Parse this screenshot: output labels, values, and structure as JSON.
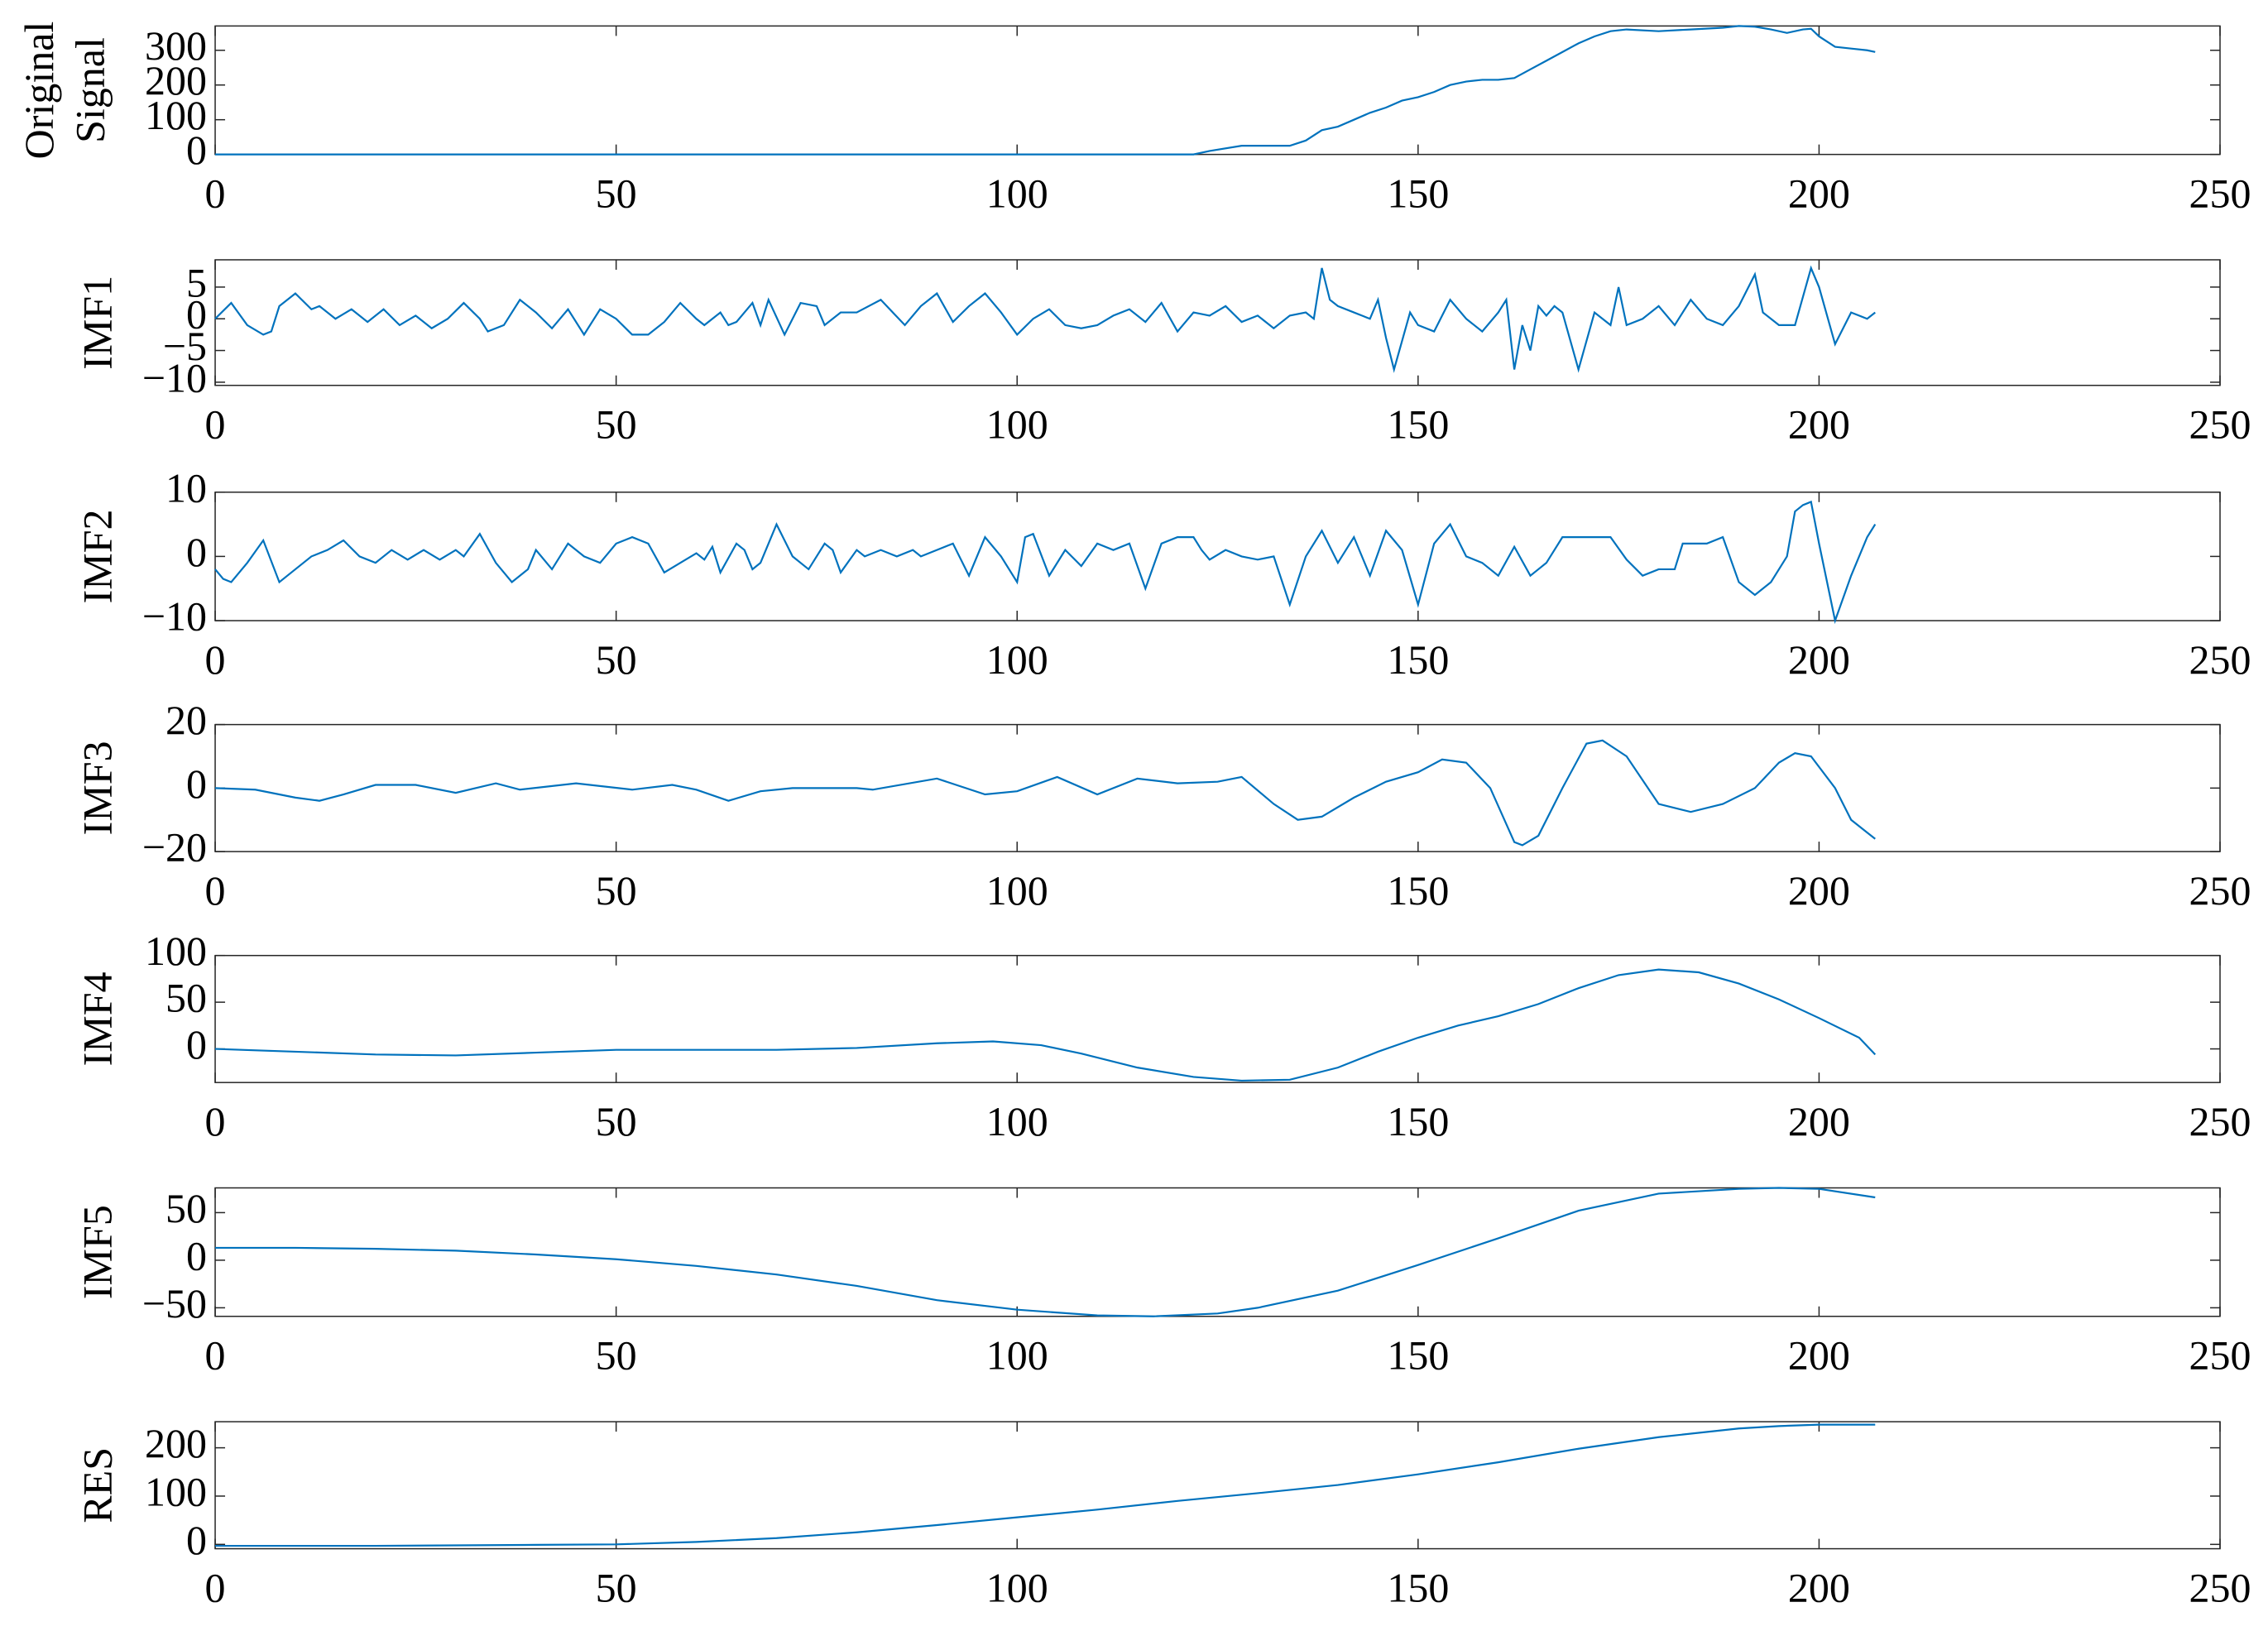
{
  "chart_data": [
    {
      "type": "line",
      "ylabel": [
        "Original",
        "Signal"
      ],
      "color": "#0072bd",
      "x": [
        0,
        20,
        40,
        60,
        80,
        100,
        122,
        124,
        128,
        132,
        134,
        136,
        138,
        140,
        142,
        144,
        146,
        148,
        150,
        152,
        154,
        156,
        158,
        160,
        162,
        164,
        166,
        168,
        170,
        172,
        174,
        176,
        180,
        184,
        188,
        190,
        192,
        194,
        196,
        198,
        199,
        200,
        202,
        204,
        206,
        207
      ],
      "values": [
        0,
        0,
        0,
        0,
        0,
        0,
        0,
        10,
        25,
        25,
        25,
        40,
        70,
        80,
        100,
        120,
        135,
        155,
        165,
        180,
        200,
        210,
        215,
        215,
        220,
        245,
        270,
        295,
        320,
        340,
        355,
        360,
        355,
        360,
        365,
        370,
        368,
        360,
        350,
        360,
        362,
        340,
        310,
        305,
        300,
        295
      ],
      "xlim": [
        0,
        250
      ],
      "xticks": [
        0,
        50,
        100,
        150,
        200,
        250
      ],
      "ylim": [
        0,
        370
      ],
      "yticks": [
        0,
        100,
        200,
        300
      ]
    },
    {
      "type": "line",
      "ylabel": "IMF1",
      "color": "#0072bd",
      "x": [
        0,
        2,
        4,
        6,
        7,
        8,
        10,
        12,
        13,
        15,
        17,
        19,
        21,
        23,
        25,
        27,
        29,
        31,
        33,
        34,
        36,
        38,
        40,
        42,
        44,
        46,
        48,
        50,
        52,
        54,
        56,
        58,
        60,
        61,
        63,
        64,
        65,
        67,
        68,
        69,
        71,
        73,
        75,
        76,
        78,
        80,
        83,
        86,
        88,
        90,
        92,
        94,
        96,
        98,
        100,
        102,
        104,
        106,
        108,
        110,
        112,
        114,
        116,
        118,
        120,
        122,
        124,
        126,
        128,
        130,
        132,
        134,
        136,
        137,
        138,
        139,
        140,
        142,
        143,
        144,
        145,
        146,
        147,
        149,
        150,
        152,
        154,
        156,
        158,
        160,
        161,
        162,
        163,
        164,
        165,
        166,
        167,
        168,
        170,
        172,
        174,
        175,
        176,
        178,
        180,
        182,
        184,
        186,
        188,
        190,
        192,
        193,
        195,
        197,
        199,
        200,
        202,
        204,
        206,
        207
      ],
      "values": [
        0,
        2.5,
        -1,
        -2.5,
        -2,
        2,
        4,
        1.5,
        2,
        0,
        1.5,
        -0.5,
        1.5,
        -1,
        0.5,
        -1.5,
        0,
        2.5,
        0,
        -2,
        -1,
        3,
        1,
        -1.5,
        1.5,
        -2.5,
        1.5,
        0,
        -2.5,
        -2.5,
        -0.5,
        2.5,
        0,
        -1,
        1,
        -1,
        -0.5,
        2.5,
        -1,
        3,
        -2.5,
        2.5,
        2,
        -1,
        1,
        1,
        3,
        -1,
        2,
        4,
        -0.5,
        2,
        4,
        1,
        -2.5,
        0,
        1.5,
        -1,
        -1.5,
        -1,
        0.5,
        1.5,
        -0.5,
        2.5,
        -2,
        1,
        0.5,
        2,
        -0.5,
        0.5,
        -1.5,
        0.5,
        1,
        0,
        8,
        3,
        2,
        1,
        0.5,
        0,
        3,
        -3,
        -8,
        1,
        -1,
        -2,
        3,
        0,
        -2,
        1,
        3,
        -8,
        -1,
        -5,
        2,
        0.5,
        2,
        1,
        -8,
        1,
        -1,
        5,
        -1,
        0,
        2,
        -1,
        3,
        0,
        -1,
        2,
        7,
        1,
        -1,
        -1,
        8,
        5,
        -4,
        1,
        0,
        1
      ],
      "xlim": [
        0,
        250
      ],
      "xticks": [
        0,
        50,
        100,
        150,
        200,
        250
      ],
      "ylim": [
        -10.5,
        9.3
      ],
      "yticks": [
        {
          "value": -10,
          "label": "−10"
        },
        {
          "value": -5,
          "label": "−5"
        },
        0,
        5
      ]
    },
    {
      "type": "line",
      "ylabel": "IMF2",
      "color": "#0072bd",
      "x": [
        0,
        1,
        2,
        4,
        6,
        8,
        10,
        12,
        14,
        16,
        18,
        20,
        22,
        24,
        26,
        28,
        30,
        31,
        33,
        35,
        37,
        39,
        40,
        42,
        44,
        46,
        48,
        50,
        52,
        54,
        56,
        58,
        60,
        61,
        62,
        63,
        65,
        66,
        67,
        68,
        70,
        72,
        74,
        76,
        77,
        78,
        80,
        81,
        83,
        85,
        87,
        88,
        90,
        92,
        94,
        96,
        98,
        100,
        101,
        102,
        104,
        106,
        108,
        110,
        112,
        114,
        116,
        118,
        120,
        122,
        123,
        124,
        126,
        128,
        130,
        132,
        134,
        136,
        138,
        140,
        142,
        144,
        146,
        148,
        150,
        152,
        154,
        156,
        158,
        160,
        162,
        164,
        165,
        166,
        168,
        170,
        172,
        174,
        176,
        178,
        180,
        182,
        183,
        184,
        186,
        188,
        190,
        192,
        194,
        196,
        197,
        198,
        199,
        200,
        202,
        204,
        206,
        207
      ],
      "values": [
        -2,
        -3.5,
        -4,
        -1,
        2.5,
        -4,
        -2,
        0,
        1,
        2.5,
        0,
        -1,
        1,
        -0.5,
        1,
        -0.5,
        1,
        0,
        3.5,
        -1,
        -4,
        -2,
        1,
        -2,
        2,
        0,
        -1,
        2,
        3,
        2,
        -2.5,
        -1,
        0.5,
        -0.5,
        1.5,
        -2.5,
        2,
        1,
        -2,
        -1,
        5,
        0,
        -2,
        2,
        1,
        -2.5,
        1,
        0,
        1,
        0,
        1,
        0,
        1,
        2,
        -3,
        3,
        0,
        -4,
        3,
        3.5,
        -3,
        1,
        -1.5,
        2,
        1,
        2,
        -5,
        2,
        3,
        3,
        1,
        -0.5,
        1,
        0,
        -0.5,
        0,
        -7.5,
        0,
        4,
        -1,
        3,
        -3,
        4,
        1,
        -7.5,
        2,
        5,
        0,
        -1,
        -3,
        1.5,
        -3,
        -2,
        -1,
        3,
        3,
        3,
        3,
        -0.5,
        -3,
        -2,
        -2,
        2,
        2,
        2,
        3,
        -4,
        -6,
        -4,
        0,
        7,
        8,
        8.5,
        2,
        -10,
        -3,
        3,
        5
      ],
      "xlim": [
        0,
        250
      ],
      "xticks": [
        0,
        50,
        100,
        150,
        200,
        250
      ],
      "ylim": [
        -10,
        10
      ],
      "yticks": [
        {
          "value": -10,
          "label": "−10"
        },
        0,
        10
      ]
    },
    {
      "type": "line",
      "ylabel": "IMF3",
      "color": "#0072bd",
      "x": [
        0,
        5,
        10,
        13,
        16,
        20,
        25,
        30,
        35,
        38,
        45,
        52,
        57,
        60,
        64,
        68,
        72,
        80,
        82,
        90,
        96,
        100,
        105,
        110,
        115,
        120,
        125,
        128,
        132,
        135,
        138,
        142,
        146,
        150,
        153,
        156,
        159,
        162,
        163,
        165,
        168,
        171,
        173,
        176,
        180,
        184,
        188,
        192,
        195,
        197,
        199,
        202,
        204,
        206,
        207
      ],
      "values": [
        0,
        -0.5,
        -3,
        -4,
        -2,
        1,
        1,
        -1.5,
        1.5,
        -0.5,
        1.5,
        -0.5,
        1,
        -0.5,
        -4,
        -1,
        0,
        0,
        -0.5,
        3,
        -2,
        -1,
        3.5,
        -2,
        3,
        1.5,
        2,
        3.5,
        -5,
        -10,
        -9,
        -3,
        2,
        5,
        9,
        8,
        0,
        -17,
        -18,
        -15,
        0,
        14,
        15,
        10,
        -5,
        -7.5,
        -5,
        0,
        8,
        11,
        10,
        0,
        -10,
        -14,
        -16
      ],
      "xlim": [
        0,
        250
      ],
      "xticks": [
        0,
        50,
        100,
        150,
        200,
        250
      ],
      "ylim": [
        -20,
        20
      ],
      "yticks": [
        {
          "value": -20,
          "label": "−20"
        },
        0,
        20
      ]
    },
    {
      "type": "line",
      "ylabel": "IMF4",
      "color": "#0072bd",
      "x": [
        0,
        10,
        20,
        30,
        40,
        50,
        60,
        70,
        80,
        90,
        97,
        103,
        108,
        115,
        122,
        128,
        134,
        140,
        145,
        150,
        155,
        160,
        165,
        170,
        175,
        180,
        185,
        190,
        195,
        200,
        205,
        207
      ],
      "values": [
        0,
        -3,
        -6,
        -7,
        -4,
        -1,
        -1,
        -1,
        1,
        6,
        8,
        4,
        -5,
        -20,
        -30,
        -34,
        -33,
        -20,
        -3,
        12,
        25,
        35,
        48,
        65,
        79,
        85,
        82,
        70,
        53,
        33,
        12,
        -6
      ],
      "xlim": [
        0,
        250
      ],
      "xticks": [
        0,
        50,
        100,
        150,
        200,
        250
      ],
      "ylim": [
        -36,
        100
      ],
      "yticks": [
        0,
        50,
        100
      ]
    },
    {
      "type": "line",
      "ylabel": "IMF5",
      "color": "#0072bd",
      "x": [
        0,
        10,
        20,
        30,
        40,
        50,
        60,
        70,
        80,
        90,
        100,
        110,
        117,
        125,
        130,
        140,
        150,
        160,
        170,
        180,
        190,
        195,
        200,
        207
      ],
      "values": [
        13,
        13,
        12,
        10,
        6,
        1,
        -6,
        -15,
        -27,
        -42,
        -52,
        -58,
        -59,
        -56,
        -50,
        -32,
        -5,
        23,
        52,
        70,
        75,
        76,
        75,
        66
      ],
      "xlim": [
        0,
        250
      ],
      "xticks": [
        0,
        50,
        100,
        150,
        200,
        250
      ],
      "ylim": [
        -59,
        76
      ],
      "yticks": [
        {
          "value": -50,
          "label": "−50"
        },
        0,
        50
      ]
    },
    {
      "type": "line",
      "ylabel": "RES",
      "color": "#0072bd",
      "x": [
        0,
        20,
        40,
        50,
        60,
        70,
        80,
        90,
        100,
        110,
        120,
        130,
        140,
        150,
        160,
        170,
        180,
        190,
        195,
        200,
        207
      ],
      "values": [
        -3,
        -3,
        -1,
        0,
        5,
        13,
        25,
        40,
        56,
        72,
        90,
        106,
        123,
        145,
        170,
        198,
        222,
        240,
        245,
        248,
        248
      ],
      "xlim": [
        0,
        250
      ],
      "xticks": [
        0,
        50,
        100,
        150,
        200,
        250
      ],
      "ylim": [
        -9,
        254
      ],
      "yticks": [
        0,
        100,
        200
      ]
    }
  ]
}
